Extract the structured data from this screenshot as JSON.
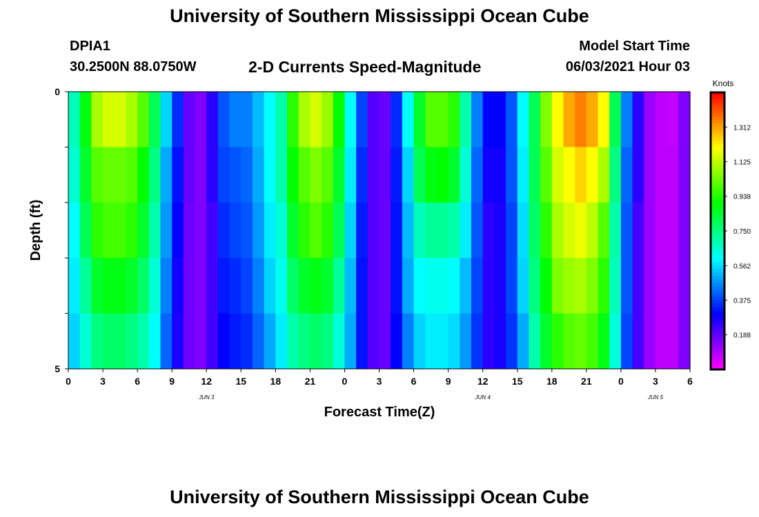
{
  "header": {
    "title": "University of Southern Mississippi Ocean Cube",
    "station_id": "DPIA1",
    "coords": "30.2500N  88.0750W",
    "chart_title": "2-D Currents Speed-Magnitude",
    "model_start_label": "Model Start Time",
    "model_start_value": "06/03/2021 Hour 03"
  },
  "footer": {
    "title": "University of Southern Mississippi Ocean Cube"
  },
  "chart_data": {
    "type": "heatmap",
    "title": "2-D Currents Speed-Magnitude",
    "xlabel": "Forecast Time(Z)",
    "ylabel": "Depth (ft)",
    "x_ticks": [
      "0",
      "3",
      "6",
      "9",
      "12",
      "15",
      "18",
      "21",
      "0",
      "3",
      "6",
      "9",
      "12",
      "15",
      "18",
      "21",
      "0",
      "3",
      "6"
    ],
    "date_labels": [
      "JUN 3",
      "JUN 4",
      "JUN 5"
    ],
    "y_tick_labels": [
      "0",
      "5"
    ],
    "ylim": [
      0,
      5
    ],
    "depth_rows": 5,
    "hour_range": [
      0,
      54
    ],
    "colorbar": {
      "unit": "Knots",
      "range": [
        0,
        1.5
      ],
      "tick_labels": [
        "1.312",
        "1.125",
        "0.938",
        "0.750",
        "0.562",
        "0.375",
        "0.188"
      ],
      "tick_values": [
        1.312,
        1.125,
        0.938,
        0.75,
        0.562,
        0.375,
        0.188
      ]
    },
    "speed_knots": [
      [
        0.68,
        0.88,
        1.1,
        1.15,
        1.15,
        1.1,
        1.0,
        0.8,
        0.55,
        0.35,
        0.18,
        0.15,
        0.25,
        0.4,
        0.45,
        0.45,
        0.52,
        0.6,
        0.7,
        0.95,
        1.1,
        1.15,
        1.08,
        0.9,
        0.6,
        0.38,
        0.2,
        0.18,
        0.35,
        0.6,
        0.85,
        1.0,
        1.0,
        0.95,
        0.7,
        0.45,
        0.3,
        0.3,
        0.4,
        0.6,
        0.8,
        1.05,
        1.2,
        1.3,
        1.35,
        1.3,
        1.2,
        0.8,
        0.45,
        0.25,
        0.12,
        0.08,
        0.07,
        0.15
      ],
      [
        0.65,
        0.85,
        1.0,
        1.02,
        1.02,
        1.0,
        0.9,
        0.75,
        0.5,
        0.32,
        0.18,
        0.15,
        0.25,
        0.38,
        0.4,
        0.42,
        0.5,
        0.6,
        0.7,
        0.9,
        1.0,
        1.05,
        1.0,
        0.85,
        0.58,
        0.35,
        0.2,
        0.18,
        0.33,
        0.55,
        0.8,
        0.88,
        0.9,
        0.85,
        0.65,
        0.42,
        0.28,
        0.28,
        0.4,
        0.58,
        0.8,
        1.0,
        1.15,
        1.2,
        1.25,
        1.2,
        1.1,
        0.75,
        0.42,
        0.25,
        0.12,
        0.08,
        0.08,
        0.15
      ],
      [
        0.6,
        0.8,
        0.95,
        0.98,
        0.98,
        0.95,
        0.85,
        0.7,
        0.48,
        0.3,
        0.17,
        0.15,
        0.22,
        0.35,
        0.38,
        0.4,
        0.48,
        0.58,
        0.65,
        0.85,
        0.95,
        1.0,
        0.95,
        0.8,
        0.55,
        0.33,
        0.2,
        0.18,
        0.32,
        0.52,
        0.68,
        0.72,
        0.72,
        0.7,
        0.58,
        0.4,
        0.25,
        0.27,
        0.38,
        0.56,
        0.78,
        0.95,
        1.1,
        1.15,
        1.18,
        1.12,
        1.0,
        0.7,
        0.4,
        0.22,
        0.12,
        0.08,
        0.08,
        0.15
      ],
      [
        0.58,
        0.72,
        0.85,
        0.88,
        0.88,
        0.85,
        0.78,
        0.65,
        0.45,
        0.28,
        0.17,
        0.15,
        0.22,
        0.33,
        0.35,
        0.38,
        0.45,
        0.55,
        0.62,
        0.78,
        0.85,
        0.88,
        0.85,
        0.72,
        0.52,
        0.32,
        0.2,
        0.18,
        0.32,
        0.5,
        0.6,
        0.62,
        0.62,
        0.6,
        0.52,
        0.38,
        0.25,
        0.27,
        0.38,
        0.55,
        0.75,
        0.9,
        1.05,
        1.08,
        1.1,
        1.05,
        0.95,
        0.68,
        0.4,
        0.22,
        0.12,
        0.08,
        0.08,
        0.15
      ],
      [
        0.55,
        0.65,
        0.75,
        0.78,
        0.78,
        0.75,
        0.7,
        0.6,
        0.42,
        0.27,
        0.17,
        0.15,
        0.22,
        0.3,
        0.33,
        0.35,
        0.42,
        0.5,
        0.58,
        0.7,
        0.75,
        0.78,
        0.75,
        0.65,
        0.5,
        0.32,
        0.2,
        0.18,
        0.3,
        0.45,
        0.55,
        0.58,
        0.58,
        0.56,
        0.48,
        0.36,
        0.25,
        0.27,
        0.36,
        0.5,
        0.7,
        0.85,
        0.95,
        1.0,
        1.02,
        0.98,
        0.88,
        0.64,
        0.38,
        0.22,
        0.12,
        0.08,
        0.08,
        0.15
      ]
    ]
  }
}
